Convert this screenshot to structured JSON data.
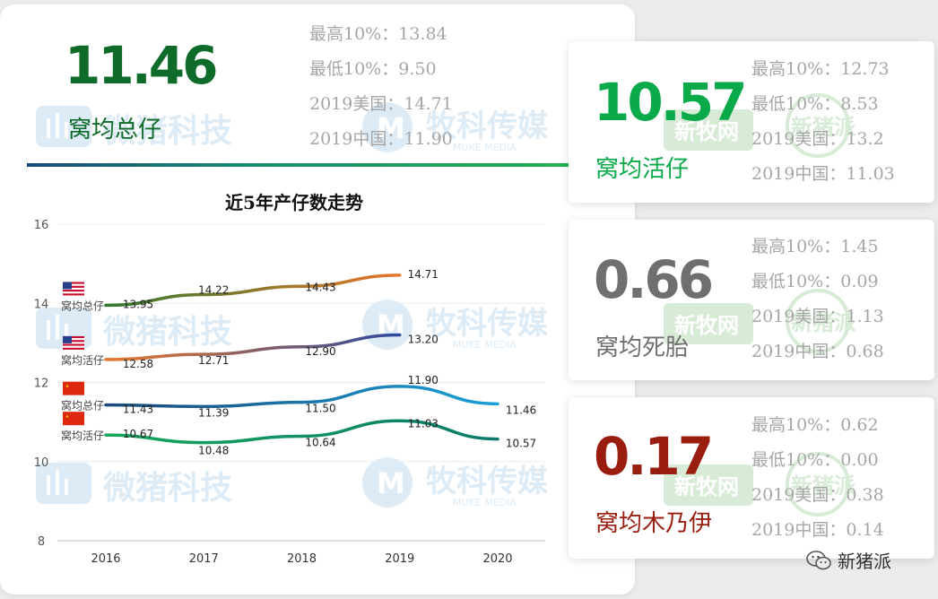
{
  "main": {
    "value": "11.46",
    "label": "窝均总仔",
    "stats": [
      "最高10%：13.84",
      "最低10%：9.50",
      "2019美国：14.71",
      "2019中国：11.90"
    ]
  },
  "cards": [
    {
      "value": "10.57",
      "label": "窝均活仔",
      "color": "#0aaa4a",
      "stats": [
        "最高10%：12.73",
        "最低10%：8.53",
        "2019美国：13.2",
        "2019中国：11.03"
      ]
    },
    {
      "value": "0.66",
      "label": "窝均死胎",
      "color": "#6f6f6f",
      "stats": [
        "最高10%：1.45",
        "最低10%：0.09",
        "2019美国：1.13",
        "2019中国：0.68"
      ]
    },
    {
      "value": "0.17",
      "label": "窝均木乃伊",
      "color": "#9a1e10",
      "stats": [
        "最高10%：0.62",
        "最低10%：0.00",
        "2019美国：0.38",
        "2019中国：0.14"
      ]
    }
  ],
  "main_colors": {
    "value": "#0e6b2a",
    "label": "#0e6b2a"
  },
  "chart_data": {
    "type": "line",
    "title": "近5年产仔数走势",
    "x": [
      "2016",
      "2017",
      "2018",
      "2019",
      "2020"
    ],
    "ylim": [
      8,
      16
    ],
    "yticks": [
      8,
      10,
      12,
      14,
      16
    ],
    "grid": true,
    "series": [
      {
        "name": "窝均总仔",
        "flag": "us",
        "color_start": "#2f7a30",
        "color_end": "#e8762a",
        "values": [
          13.95,
          14.22,
          14.43,
          14.71,
          null
        ]
      },
      {
        "name": "窝均活仔",
        "flag": "us",
        "color_start": "#e8762a",
        "color_end": "#2e4aa0",
        "values": [
          12.58,
          12.71,
          12.9,
          13.2,
          null
        ]
      },
      {
        "name": "窝均总仔",
        "flag": "cn",
        "color_start": "#1a4a7a",
        "color_end": "#1aa0d8",
        "values": [
          11.43,
          11.39,
          11.5,
          11.9,
          11.46
        ]
      },
      {
        "name": "窝均活仔",
        "flag": "cn",
        "color_start": "#14a85a",
        "color_end": "#0a7a6a",
        "values": [
          10.67,
          10.48,
          10.64,
          11.03,
          10.57
        ]
      }
    ]
  },
  "watermarks": {
    "brand1": "微猪科技",
    "brand2": "牧科传媒",
    "brand2_sub": "MUKE MEDIA",
    "brand3": "新牧网",
    "brand4": "新猪派"
  },
  "footer": {
    "text": "新猪派"
  }
}
